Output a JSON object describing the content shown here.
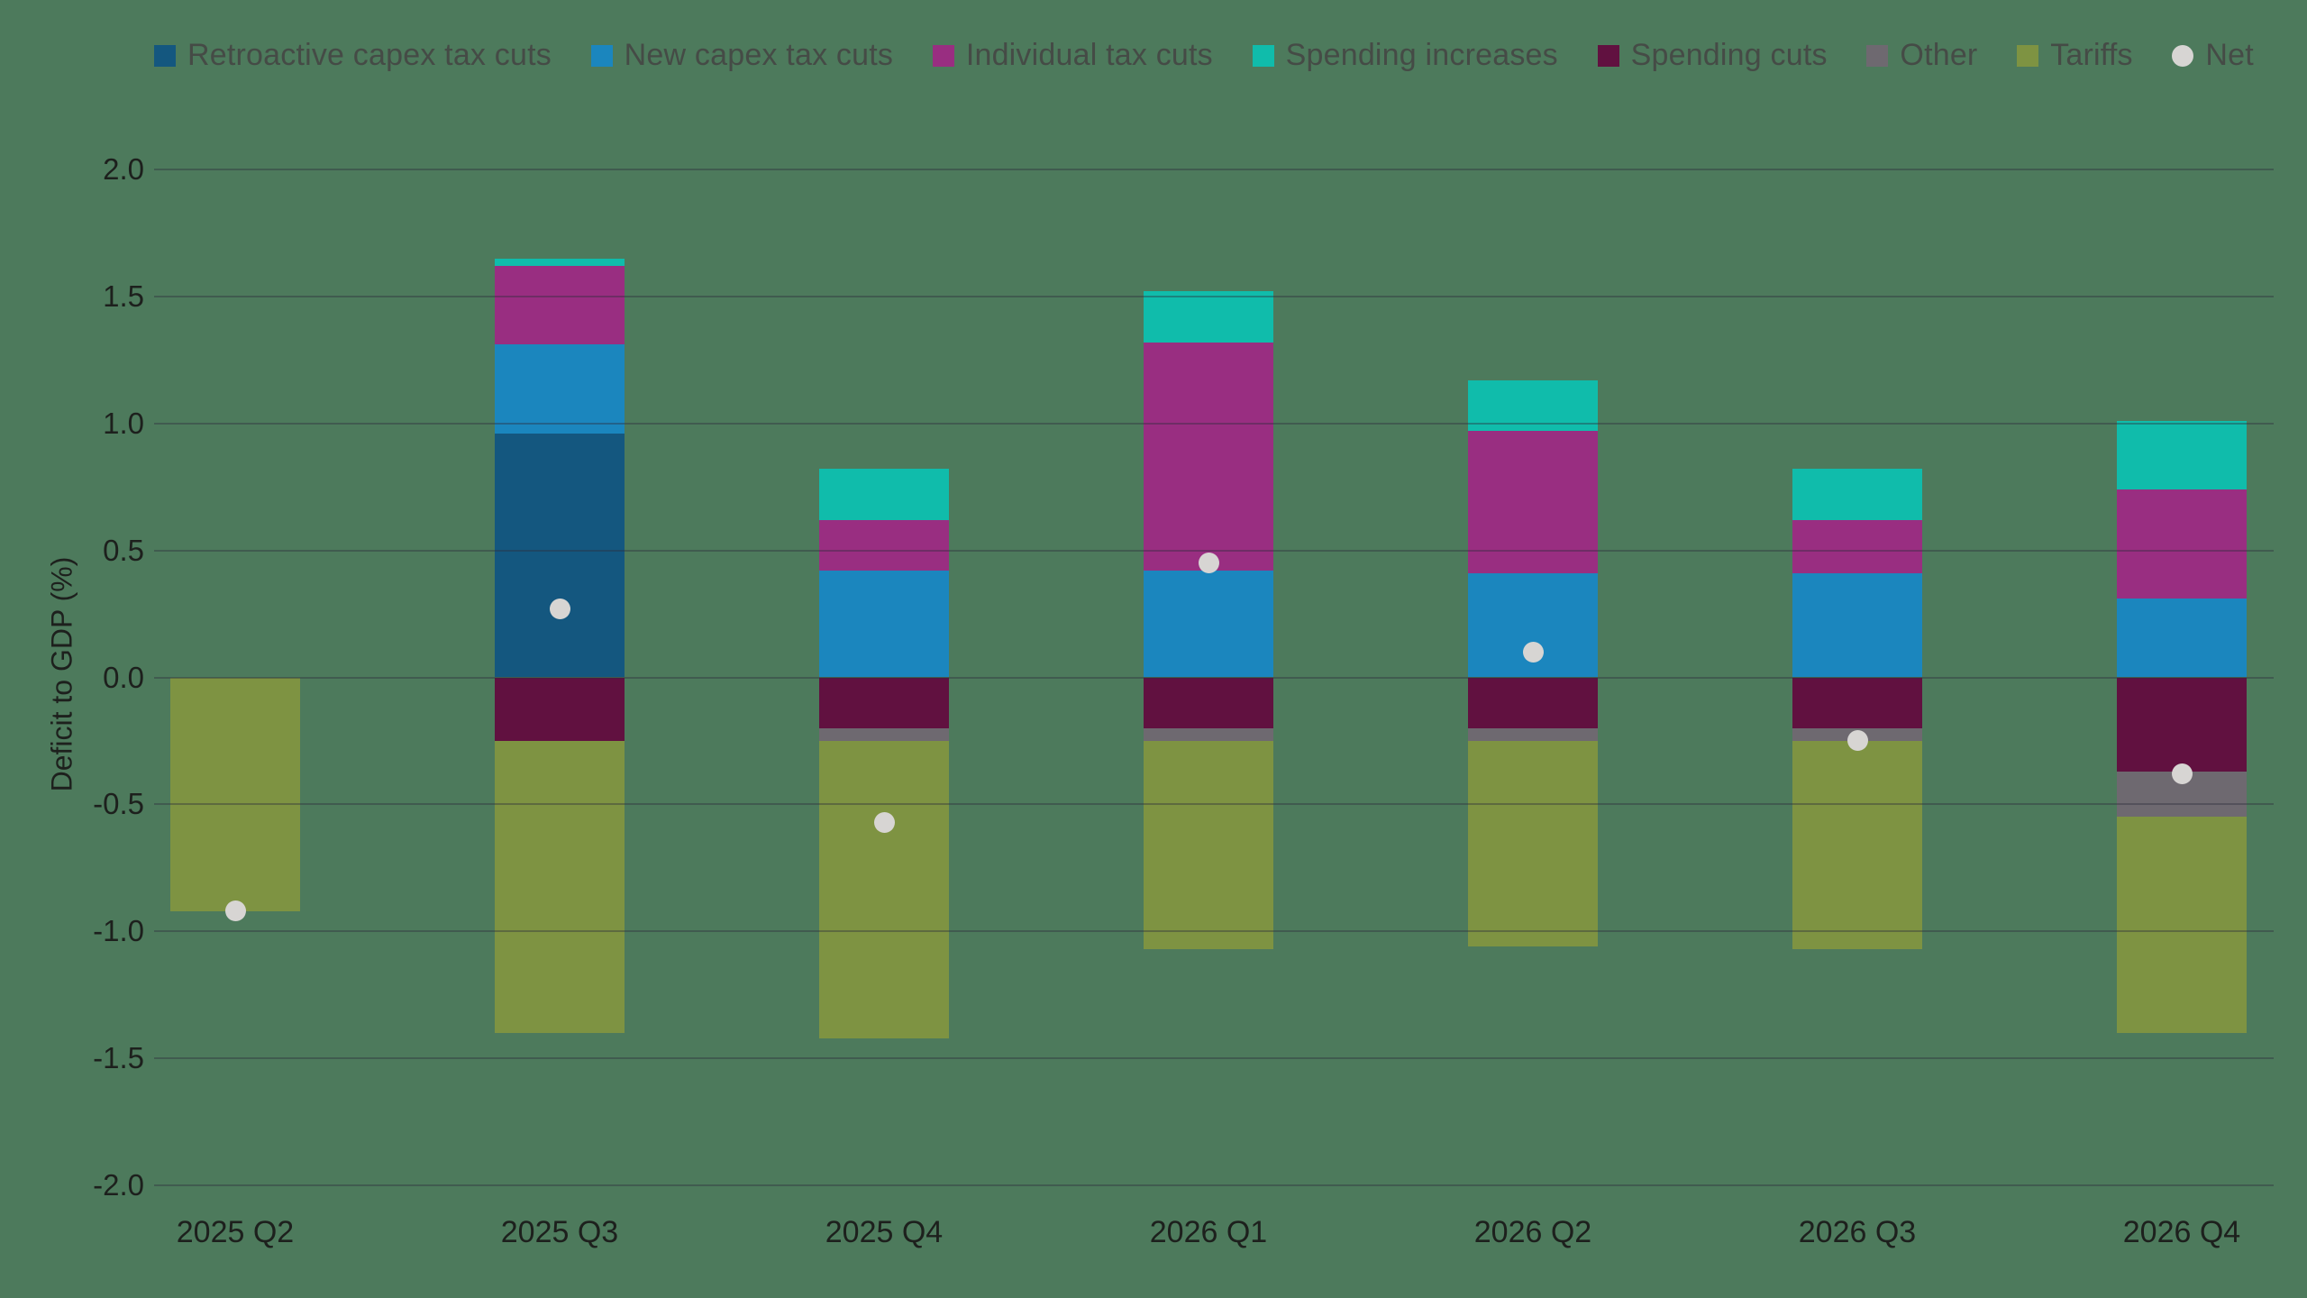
{
  "chart_data": {
    "type": "bar",
    "subtype": "stacked-bar-with-net-markers",
    "title": "",
    "ylabel": "Deficit to GDP (%)",
    "ylim": [
      -2.0,
      2.0
    ],
    "ytick_step": 0.5,
    "ytick_labels": [
      "2.0",
      "1.5",
      "1.0",
      "0.5",
      "0.0",
      "-0.5",
      "-1.0",
      "-1.5",
      "-2.0"
    ],
    "grid": "horizontal",
    "legend_position": "top",
    "background_color": "#4d7a5c",
    "axis_text_color": "#1d201d",
    "legend_text_color": "#454b46",
    "categories": [
      "2025 Q2",
      "2025 Q3",
      "2025 Q4",
      "2026 Q1",
      "2026 Q2",
      "2026 Q3",
      "2026 Q4"
    ],
    "series": [
      {
        "name": "Retroactive capex tax cuts",
        "color": "#14577f",
        "values": [
          0,
          0.96,
          0,
          0,
          0,
          0,
          0
        ]
      },
      {
        "name": "New capex tax cuts",
        "color": "#1b86be",
        "values": [
          0,
          0.35,
          0.42,
          0.42,
          0.41,
          0.41,
          0.31
        ]
      },
      {
        "name": "Individual tax cuts",
        "color": "#992e81",
        "values": [
          0,
          0.31,
          0.2,
          0.9,
          0.56,
          0.21,
          0.43
        ]
      },
      {
        "name": "Spending increases",
        "color": "#10bcab",
        "values": [
          0,
          0.03,
          0.2,
          0.2,
          0.2,
          0.2,
          0.27
        ]
      },
      {
        "name": "Spending cuts",
        "color": "#611140",
        "values": [
          0,
          -0.25,
          -0.2,
          -0.2,
          -0.2,
          -0.2,
          -0.37
        ]
      },
      {
        "name": "Other",
        "color": "#6e6970",
        "values": [
          0,
          0,
          -0.05,
          -0.05,
          -0.05,
          -0.05,
          -0.18
        ]
      },
      {
        "name": "Tariffs",
        "color": "#7e9342",
        "values": [
          -0.92,
          -1.15,
          -1.17,
          -0.82,
          -0.81,
          -0.82,
          -0.85
        ]
      }
    ],
    "net": {
      "name": "Net",
      "color": "#d7d5d3",
      "values": [
        -0.92,
        0.27,
        -0.57,
        0.45,
        0.1,
        -0.25,
        -0.38
      ]
    }
  }
}
